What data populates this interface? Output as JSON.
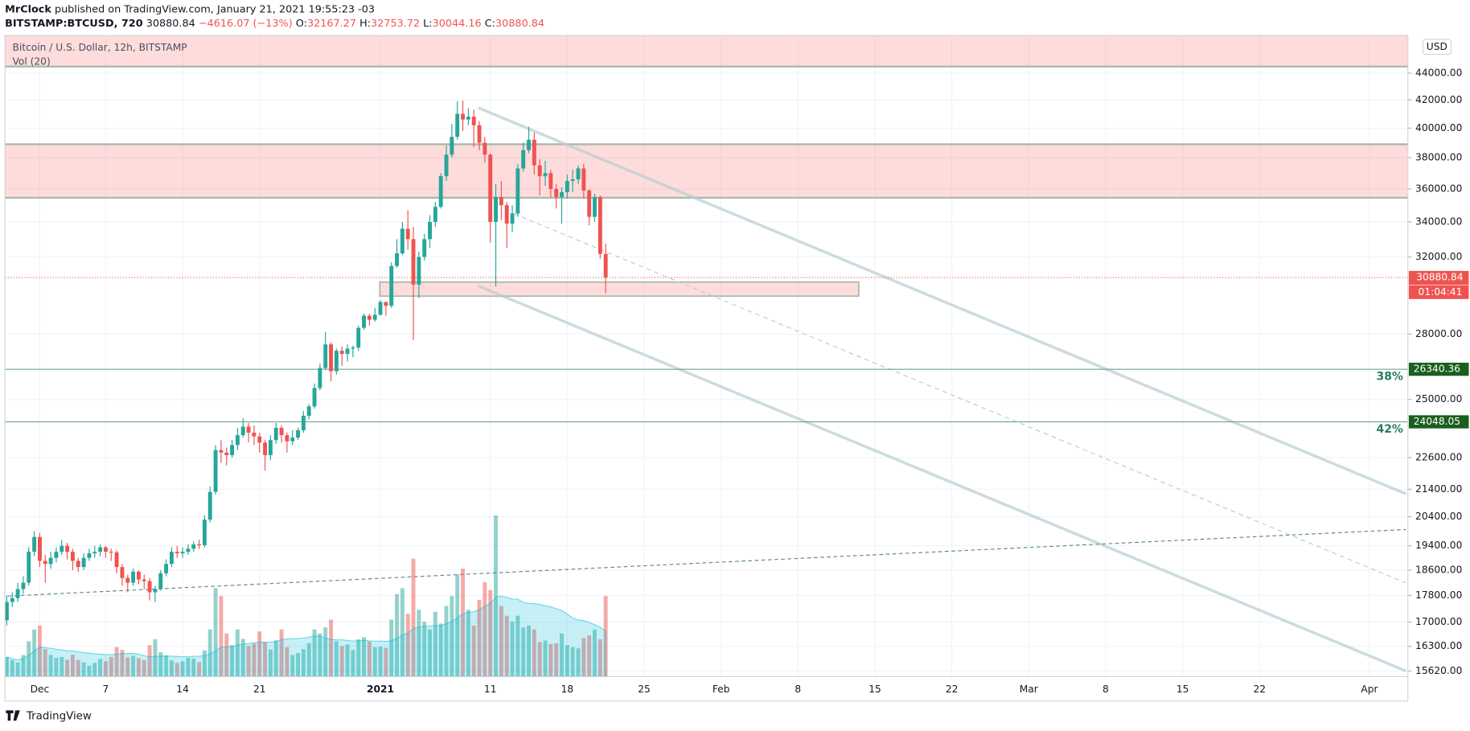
{
  "chart_data": {
    "type": "candlestick",
    "header": {
      "author": "MrClock",
      "published": "published on TradingView.com, January 21, 2021 19:55:23 -03",
      "symbol": "BITSTAMP:BTCUSD, 720",
      "change": "−4616.07 (−13%)",
      "o": "O:",
      "h": "H:",
      "l": "L:",
      "c": "C:"
    },
    "legend": {
      "title": "Bitcoin / U.S. Dollar, 12h, BITSTAMP",
      "volume": "Vol (20)"
    },
    "currency": "USD",
    "countdown": "01:04:41",
    "brand": "TradingView",
    "log_scale": true,
    "grid": true,
    "up_color": "#26a69a",
    "down_color": "#ef5350",
    "xlim": [
      "2020-11-27 20:00",
      "2021-04-04 12:00"
    ],
    "xticks": [
      {
        "value": "2020-12-01",
        "label": "Dec"
      },
      {
        "value": "2020-12-07",
        "label": "7"
      },
      {
        "value": "2020-12-14",
        "label": "14"
      },
      {
        "value": "2020-12-21",
        "label": "21"
      },
      {
        "value": "2021-01-01",
        "label": "2021"
      },
      {
        "value": "2021-01-11",
        "label": "11"
      },
      {
        "value": "2021-01-18",
        "label": "18"
      },
      {
        "value": "2021-01-25",
        "label": "25"
      },
      {
        "value": "2021-02-01",
        "label": "Feb"
      },
      {
        "value": "2021-02-08",
        "label": "8"
      },
      {
        "value": "2021-02-15",
        "label": "15"
      },
      {
        "value": "2021-02-22",
        "label": "22"
      },
      {
        "value": "2021-03-01",
        "label": "Mar"
      },
      {
        "value": "2021-03-08",
        "label": "8"
      },
      {
        "value": "2021-03-15",
        "label": "15"
      },
      {
        "value": "2021-03-22",
        "label": "22"
      },
      {
        "value": "2021-04-01",
        "label": "Apr"
      }
    ],
    "ylim": [
      15466,
      46950
    ],
    "yticks": [
      {
        "value": 15620,
        "label": "15620.00"
      },
      {
        "value": 16300,
        "label": "16300.00"
      },
      {
        "value": 17000,
        "label": "17000.00"
      },
      {
        "value": 17800,
        "label": "17800.00"
      },
      {
        "value": 18600,
        "label": "18600.00"
      },
      {
        "value": 19400,
        "label": "19400.00"
      },
      {
        "value": 20400,
        "label": "20400.00"
      },
      {
        "value": 21400,
        "label": "21400.00"
      },
      {
        "value": 22600,
        "label": "22600.00"
      },
      {
        "value": 25000,
        "label": "25000.00"
      },
      {
        "value": 28000,
        "label": "28000.00"
      },
      {
        "value": 32000,
        "label": "32000.00"
      },
      {
        "value": 34000,
        "label": "34000.00"
      },
      {
        "value": 36000,
        "label": "36000.00"
      },
      {
        "value": 38000,
        "label": "38000.00"
      },
      {
        "value": 40000,
        "label": "40000.00"
      },
      {
        "value": 42000,
        "label": "42000.00"
      },
      {
        "value": 44000,
        "label": "44000.00"
      }
    ],
    "levels": [
      {
        "value": 26340.36,
        "label": "38%"
      },
      {
        "value": 24048.05,
        "label": "42%"
      }
    ],
    "x": [
      "2020-11-28 00:00",
      "2020-11-28 12:00",
      "2020-11-29 00:00",
      "2020-11-29 12:00",
      "2020-11-30 00:00",
      "2020-11-30 12:00",
      "2020-12-01 00:00",
      "2020-12-01 12:00",
      "2020-12-02 00:00",
      "2020-12-02 12:00",
      "2020-12-03 00:00",
      "2020-12-03 12:00",
      "2020-12-04 00:00",
      "2020-12-04 12:00",
      "2020-12-05 00:00",
      "2020-12-05 12:00",
      "2020-12-06 00:00",
      "2020-12-06 12:00",
      "2020-12-07 00:00",
      "2020-12-07 12:00",
      "2020-12-08 00:00",
      "2020-12-08 12:00",
      "2020-12-09 00:00",
      "2020-12-09 12:00",
      "2020-12-10 00:00",
      "2020-12-10 12:00",
      "2020-12-11 00:00",
      "2020-12-11 12:00",
      "2020-12-12 00:00",
      "2020-12-12 12:00",
      "2020-12-13 00:00",
      "2020-12-13 12:00",
      "2020-12-14 00:00",
      "2020-12-14 12:00",
      "2020-12-15 00:00",
      "2020-12-15 12:00",
      "2020-12-16 00:00",
      "2020-12-16 12:00",
      "2020-12-17 00:00",
      "2020-12-17 12:00",
      "2020-12-18 00:00",
      "2020-12-18 12:00",
      "2020-12-19 00:00",
      "2020-12-19 12:00",
      "2020-12-20 00:00",
      "2020-12-20 12:00",
      "2020-12-21 00:00",
      "2020-12-21 12:00",
      "2020-12-22 00:00",
      "2020-12-22 12:00",
      "2020-12-23 00:00",
      "2020-12-23 12:00",
      "2020-12-24 00:00",
      "2020-12-24 12:00",
      "2020-12-25 00:00",
      "2020-12-25 12:00",
      "2020-12-26 00:00",
      "2020-12-26 12:00",
      "2020-12-27 00:00",
      "2020-12-27 12:00",
      "2020-12-28 00:00",
      "2020-12-28 12:00",
      "2020-12-29 00:00",
      "2020-12-29 12:00",
      "2020-12-30 00:00",
      "2020-12-30 12:00",
      "2020-12-31 00:00",
      "2020-12-31 12:00",
      "2021-01-01 00:00",
      "2021-01-01 12:00",
      "2021-01-02 00:00",
      "2021-01-02 12:00",
      "2021-01-03 00:00",
      "2021-01-03 12:00",
      "2021-01-04 00:00",
      "2021-01-04 12:00",
      "2021-01-05 00:00",
      "2021-01-05 12:00",
      "2021-01-06 00:00",
      "2021-01-06 12:00",
      "2021-01-07 00:00",
      "2021-01-07 12:00",
      "2021-01-08 00:00",
      "2021-01-08 12:00",
      "2021-01-09 00:00",
      "2021-01-09 12:00",
      "2021-01-10 00:00",
      "2021-01-10 12:00",
      "2021-01-11 00:00",
      "2021-01-11 12:00",
      "2021-01-12 00:00",
      "2021-01-12 12:00",
      "2021-01-13 00:00",
      "2021-01-13 12:00",
      "2021-01-14 00:00",
      "2021-01-14 12:00",
      "2021-01-15 00:00",
      "2021-01-15 12:00",
      "2021-01-16 00:00",
      "2021-01-16 12:00",
      "2021-01-17 00:00",
      "2021-01-17 12:00",
      "2021-01-18 00:00",
      "2021-01-18 12:00",
      "2021-01-19 00:00",
      "2021-01-19 12:00",
      "2021-01-20 00:00",
      "2021-01-20 12:00",
      "2021-01-21 00:00",
      "2021-01-21 12:00"
    ],
    "open": [
      17050,
      17600,
      17720,
      18000,
      18200,
      19200,
      19700,
      18900,
      18800,
      19000,
      19200,
      19400,
      19200,
      18900,
      18700,
      19000,
      19150,
      19200,
      19350,
      19200,
      19180,
      18700,
      18350,
      18200,
      18550,
      18300,
      18250,
      17900,
      18000,
      18500,
      18800,
      19200,
      19150,
      19200,
      19300,
      19450,
      19420,
      20300,
      21300,
      22900,
      22800,
      22700,
      23100,
      23500,
      23850,
      23600,
      23450,
      23200,
      22700,
      23300,
      23800,
      23500,
      23250,
      23400,
      23700,
      24300,
      24700,
      25500,
      26400,
      27500,
      26250,
      27200,
      27050,
      27300,
      27350,
      28300,
      28900,
      28700,
      28950,
      29600,
      29400,
      31500,
      32200,
      33600,
      33000,
      30500,
      32000,
      33000,
      34000,
      34900,
      36800,
      38200,
      39400,
      41000,
      40600,
      40800,
      40200,
      39000,
      38200,
      34000,
      35500,
      35000,
      33900,
      34500,
      37300,
      38500,
      39200,
      37500,
      36800,
      37000,
      36000,
      35500,
      35800,
      36500,
      36600,
      37300,
      35900,
      34300,
      35500,
      32167.27
    ],
    "high": [
      17800,
      17900,
      18200,
      18400,
      19350,
      19900,
      19850,
      19100,
      19200,
      19350,
      19600,
      19500,
      19300,
      19000,
      19150,
      19300,
      19400,
      19450,
      19400,
      19300,
      19250,
      18800,
      18450,
      18650,
      18600,
      18450,
      18350,
      18100,
      18600,
      18950,
      19350,
      19400,
      19350,
      19450,
      19550,
      19600,
      20450,
      21500,
      23100,
      23300,
      23000,
      23300,
      23800,
      24200,
      24000,
      23900,
      23600,
      23300,
      23500,
      24000,
      23900,
      23600,
      23700,
      23800,
      24500,
      24800,
      25700,
      26600,
      28100,
      27600,
      27300,
      27400,
      27500,
      27450,
      28400,
      29000,
      29000,
      29300,
      29700,
      29600,
      31700,
      33000,
      34000,
      34700,
      33700,
      32300,
      33300,
      34400,
      35200,
      37000,
      38800,
      40300,
      41900,
      41950,
      41400,
      41300,
      40500,
      39400,
      38300,
      36300,
      36500,
      35200,
      35000,
      37600,
      39000,
      40100,
      39700,
      37900,
      37800,
      37200,
      36300,
      36100,
      36900,
      37200,
      37500,
      37600,
      36000,
      35700,
      35600,
      32753.72
    ],
    "low": [
      16900,
      17450,
      17600,
      17850,
      18100,
      19050,
      18700,
      18200,
      18650,
      18850,
      19100,
      18950,
      18600,
      18550,
      18600,
      18900,
      19000,
      19050,
      19000,
      18900,
      18500,
      18100,
      17900,
      18100,
      18150,
      18000,
      17650,
      17600,
      17950,
      18400,
      18700,
      19000,
      19000,
      19100,
      19200,
      19300,
      19350,
      20200,
      21200,
      22400,
      22300,
      22600,
      22900,
      23400,
      23200,
      23100,
      22800,
      22100,
      22500,
      23150,
      23200,
      22800,
      23100,
      23300,
      23600,
      24150,
      24600,
      25400,
      26300,
      25800,
      26100,
      26500,
      26700,
      26900,
      27200,
      28200,
      28400,
      28600,
      28900,
      28900,
      29300,
      31400,
      32100,
      32400,
      27700,
      29800,
      31800,
      32500,
      33700,
      34800,
      36500,
      38000,
      39200,
      39800,
      40200,
      38700,
      38500,
      37700,
      32800,
      30400,
      34100,
      32500,
      33400,
      34300,
      37100,
      38300,
      36900,
      35600,
      36200,
      35500,
      34800,
      33900,
      35400,
      35800,
      36300,
      35400,
      33800,
      34000,
      31900,
      30044.16
    ],
    "close": [
      17600,
      17720,
      18000,
      18200,
      19200,
      19700,
      18900,
      18800,
      19000,
      19200,
      19400,
      19200,
      18900,
      18700,
      19000,
      19150,
      19200,
      19350,
      19200,
      19180,
      18700,
      18350,
      18200,
      18550,
      18300,
      18250,
      17900,
      18000,
      18500,
      18800,
      19200,
      19150,
      19200,
      19300,
      19450,
      19420,
      20300,
      21300,
      22900,
      22800,
      22700,
      23100,
      23500,
      23850,
      23600,
      23450,
      23200,
      22700,
      23300,
      23800,
      23500,
      23250,
      23400,
      23700,
      24300,
      24700,
      25500,
      26400,
      27500,
      26250,
      27200,
      27050,
      27300,
      27350,
      28300,
      28900,
      28700,
      28950,
      29600,
      29400,
      31500,
      32200,
      33600,
      33000,
      30500,
      32000,
      33000,
      34000,
      34900,
      36800,
      38200,
      39400,
      41000,
      40600,
      40800,
      40200,
      39000,
      38200,
      34000,
      35500,
      35000,
      33900,
      34500,
      37300,
      38500,
      39200,
      37500,
      36800,
      37000,
      36000,
      35500,
      35800,
      36500,
      36600,
      37300,
      35900,
      34300,
      35500,
      32167.27,
      30880.84
    ],
    "volume": [
      5000,
      4200,
      3600,
      5500,
      9000,
      12000,
      13000,
      7000,
      5500,
      4800,
      5000,
      4300,
      5600,
      4200,
      3600,
      2800,
      3500,
      4500,
      3900,
      5000,
      7500,
      6800,
      4900,
      5300,
      4700,
      4200,
      8000,
      9500,
      6200,
      5400,
      4100,
      3500,
      3900,
      4800,
      4600,
      3700,
      6700,
      12000,
      22500,
      20500,
      11000,
      8000,
      12000,
      9600,
      7800,
      8400,
      11500,
      8800,
      6900,
      9200,
      12000,
      7500,
      5500,
      6000,
      7000,
      8500,
      12000,
      11000,
      12500,
      14500,
      9000,
      7800,
      8200,
      6800,
      9500,
      10000,
      8900,
      7500,
      7600,
      7300,
      14500,
      21000,
      22500,
      16000,
      30000,
      17000,
      14000,
      12000,
      16500,
      13500,
      18000,
      20500,
      26000,
      27500,
      17000,
      13000,
      19500,
      24000,
      22000,
      41000,
      18000,
      15500,
      14000,
      15500,
      12500,
      13000,
      12000,
      8800,
      9200,
      8300,
      8500,
      11000,
      8000,
      7500,
      7200,
      9800,
      10500,
      12000,
      9500,
      20500
    ]
  }
}
